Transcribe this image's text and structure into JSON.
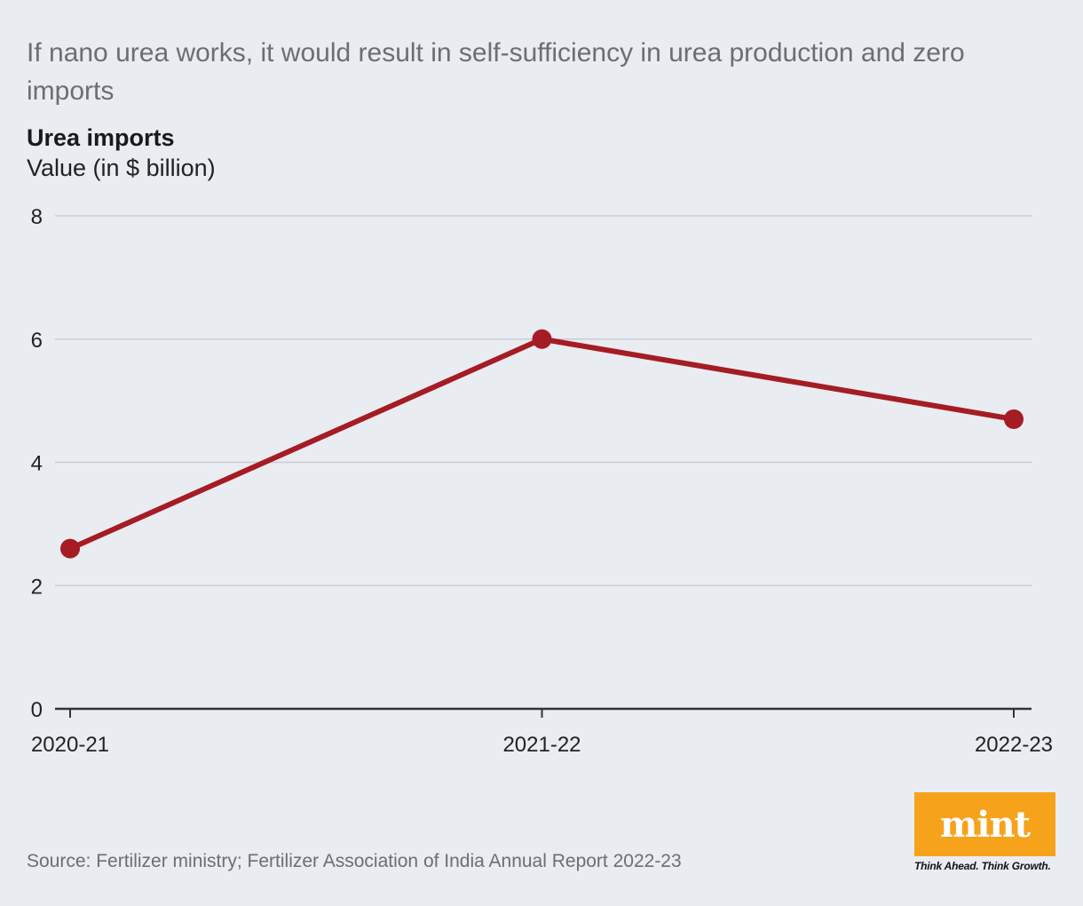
{
  "headline": "If nano urea works, it would result in self-sufficiency in urea production and zero imports",
  "chart_data": {
    "type": "line",
    "title": "Urea imports",
    "ylabel": "Value (in $ billion)",
    "xlabel": "",
    "categories": [
      "2020-21",
      "2021-22",
      "2022-23"
    ],
    "series": [
      {
        "name": "Urea imports",
        "values": [
          2.6,
          6.0,
          4.7
        ]
      }
    ],
    "ylim": [
      0,
      8
    ],
    "yticks": [
      "0",
      "2",
      "4",
      "6",
      "8"
    ],
    "grid": true,
    "line_color": "#a51c24"
  },
  "source": "Source: Fertilizer ministry; Fertilizer Association of India Annual Report 2022-23",
  "logo": {
    "wordmark": "mint",
    "tagline": "Think Ahead. Think Growth.",
    "color": "#f7a21b"
  }
}
